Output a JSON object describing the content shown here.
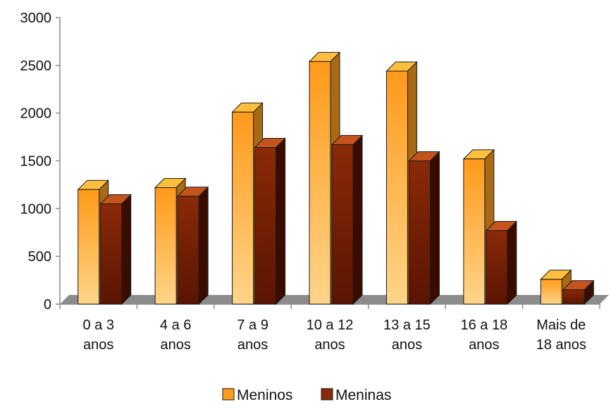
{
  "chart_data": {
    "type": "bar",
    "title": "",
    "xlabel": "",
    "ylabel": "",
    "ylim": [
      0,
      3000
    ],
    "yticks": [
      "0",
      "500",
      "1000",
      "1500",
      "2000",
      "2500",
      "3000"
    ],
    "grid": false,
    "legend_position": "bottom",
    "categories": [
      [
        "0 a 3",
        "anos"
      ],
      [
        "4 a 6",
        "anos"
      ],
      [
        "7 a 9",
        "anos"
      ],
      [
        "10 a 12",
        "anos"
      ],
      [
        "13 a 15",
        "anos"
      ],
      [
        "16 a 18",
        "anos"
      ],
      [
        "Mais de",
        "18 anos"
      ]
    ],
    "series": [
      {
        "name": "Meninos",
        "values": [
          1200,
          1220,
          2010,
          2540,
          2440,
          1520,
          260
        ],
        "color_top": "#ff9a1a",
        "color_bottom": "#ffd58a",
        "color_side": "#a86a14",
        "color_cap": "#ffbf3e"
      },
      {
        "name": "Meninas",
        "values": [
          1050,
          1130,
          1640,
          1670,
          1500,
          770,
          150
        ],
        "color_top": "#8a2a08",
        "color_bottom": "#5a1402",
        "color_side": "#3a0c00",
        "color_cap": "#c4541c"
      }
    ],
    "floor_color": "#8c8c8c"
  }
}
